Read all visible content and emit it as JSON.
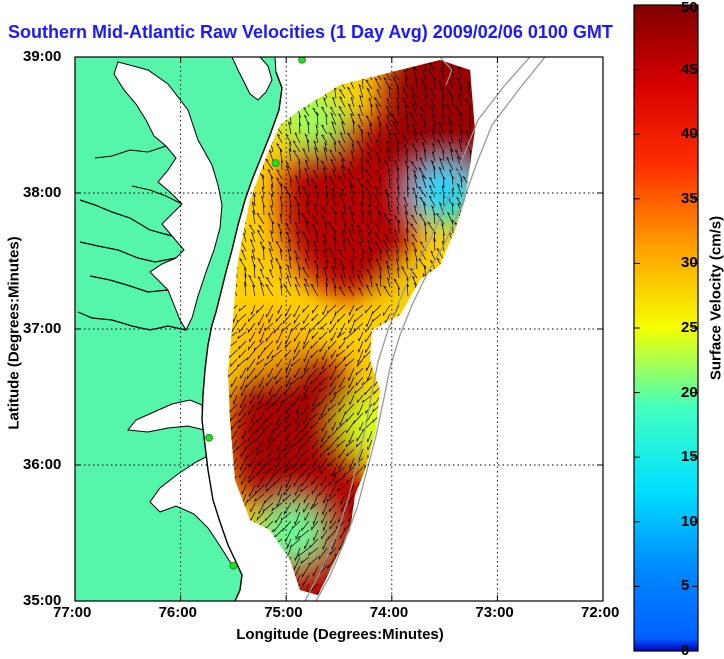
{
  "title": "Southern Mid-Atlantic Raw Velocities (1 Day Avg) 2009/02/06 0100 GMT",
  "xlabel": "Longitude (Degrees:Minutes)",
  "ylabel": "Latitude (Degrees:Minutes)",
  "colorbar_label": "Surface Velocity (cm/s)",
  "colors": {
    "land": "#55f5aa",
    "coast": "#000000",
    "bathymetry": "#999999",
    "stations": "#22dd22",
    "grid": "#000000"
  },
  "chart_data": {
    "type": "heatmap",
    "x_ticks": [
      "77:00",
      "76:00",
      "75:00",
      "74:00",
      "73:00",
      "72:00"
    ],
    "y_ticks": [
      "39:00",
      "38:00",
      "37:00",
      "36:00",
      "35:00"
    ],
    "xlim": [
      -77,
      -72
    ],
    "ylim": [
      35,
      39
    ],
    "colorbar": {
      "min": 0,
      "max": 50,
      "ticks": [
        "0",
        "5",
        "10",
        "15",
        "20",
        "25",
        "30",
        "35",
        "40",
        "45",
        "50"
      ],
      "colormap": "jet"
    },
    "grid": true,
    "overlay": "velocity vectors",
    "velocity_patches": [
      {
        "region": "northern lobe",
        "lon": -74.4,
        "lat": 37.9,
        "value": 46
      },
      {
        "region": "northeast corner",
        "lon": -73.45,
        "lat": 38.6,
        "value": 48
      },
      {
        "region": "northeast edge",
        "lon": -73.5,
        "lat": 38.0,
        "value": 12
      },
      {
        "region": "northwest edge",
        "lon": -74.75,
        "lat": 38.55,
        "value": 22
      },
      {
        "region": "inner northeast",
        "lon": -73.75,
        "lat": 37.2,
        "value": 28
      },
      {
        "region": "southern lobe",
        "lon": -74.9,
        "lat": 36.2,
        "value": 47
      },
      {
        "region": "western edge",
        "lon": -75.15,
        "lat": 36.9,
        "value": 30
      },
      {
        "region": "southeast edge",
        "lon": -74.2,
        "lat": 36.3,
        "value": 24
      },
      {
        "region": "far south",
        "lon": -74.6,
        "lat": 35.35,
        "value": 46
      },
      {
        "region": "southern edge",
        "lon": -74.95,
        "lat": 35.5,
        "value": 20
      }
    ],
    "stations": [
      {
        "lon": -74.85,
        "lat": 38.98
      },
      {
        "lon": -75.1,
        "lat": 38.22
      },
      {
        "lon": -75.73,
        "lat": 36.2
      },
      {
        "lon": -75.5,
        "lat": 35.26
      }
    ]
  }
}
